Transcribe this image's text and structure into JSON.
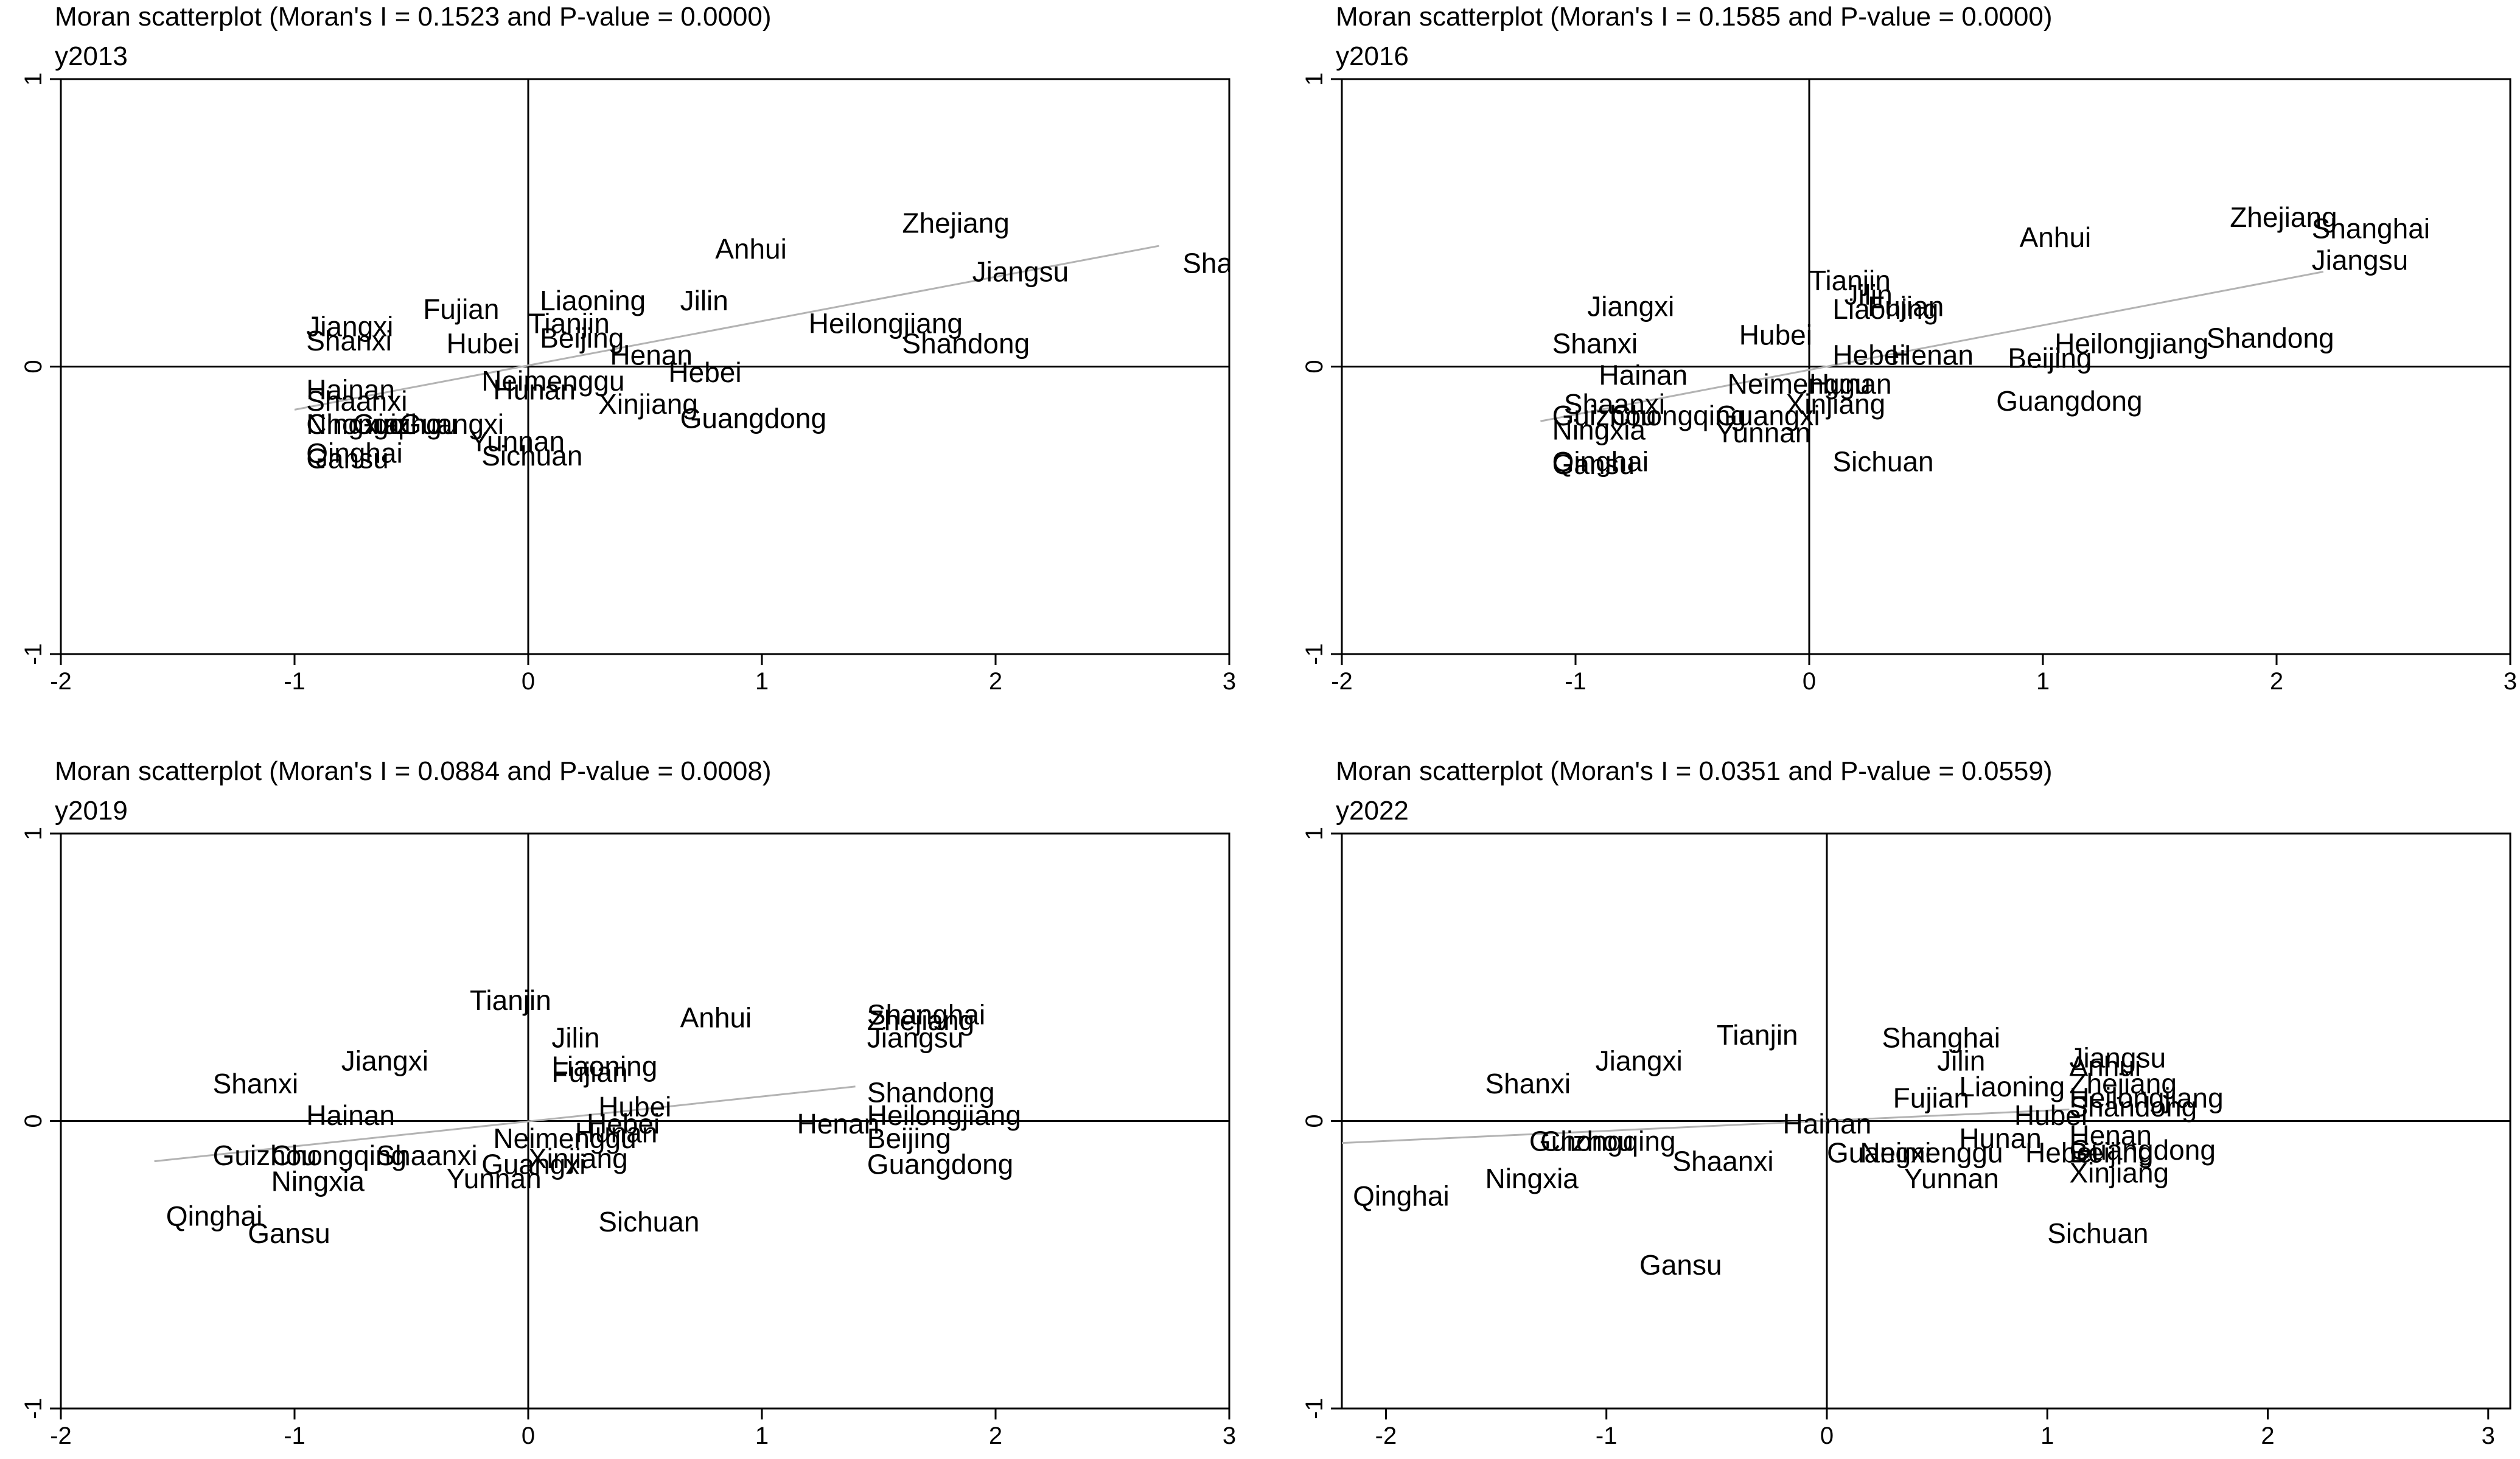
{
  "chart_data": [
    {
      "type": "scatter",
      "title": "Moran scatterplot (Moran's I = 0.1523 and P-value = 0.0000)",
      "subtitle": "y2013",
      "xlim": [
        -2,
        3
      ],
      "ylim": [
        -1,
        1
      ],
      "xticks": [
        "-2",
        "-1",
        "0",
        "1",
        "2",
        "3"
      ],
      "yticks": [
        "-1",
        "0",
        "1"
      ],
      "fit_line": {
        "x": [
          -1,
          2.7
        ],
        "y": [
          -0.15,
          0.42
        ]
      },
      "points": [
        {
          "label": "Zhejiang",
          "x": 1.6,
          "y": 0.5
        },
        {
          "label": "Shanghai",
          "x": 2.8,
          "y": 0.36
        },
        {
          "label": "Jiangsu",
          "x": 1.9,
          "y": 0.33
        },
        {
          "label": "Anhui",
          "x": 0.8,
          "y": 0.41
        },
        {
          "label": "Heilongjiang",
          "x": 1.2,
          "y": 0.15
        },
        {
          "label": "Shandong",
          "x": 1.6,
          "y": 0.08
        },
        {
          "label": "Jilin",
          "x": 0.65,
          "y": 0.23
        },
        {
          "label": "Liaoning",
          "x": 0.05,
          "y": 0.23
        },
        {
          "label": "Tianjin",
          "x": 0.0,
          "y": 0.15
        },
        {
          "label": "Beijing",
          "x": 0.05,
          "y": 0.1
        },
        {
          "label": "Henan",
          "x": 0.35,
          "y": 0.04
        },
        {
          "label": "Hebei",
          "x": 0.6,
          "y": -0.02
        },
        {
          "label": "Fujian",
          "x": -0.45,
          "y": 0.2
        },
        {
          "label": "Hubei",
          "x": -0.35,
          "y": 0.08
        },
        {
          "label": "Jiangxi",
          "x": -0.95,
          "y": 0.14
        },
        {
          "label": "Shanxi",
          "x": -0.95,
          "y": 0.09
        },
        {
          "label": "Neimenggu",
          "x": -0.2,
          "y": -0.05
        },
        {
          "label": "Hunan",
          "x": -0.15,
          "y": -0.08
        },
        {
          "label": "Xinjiang",
          "x": 0.3,
          "y": -0.13
        },
        {
          "label": "Guangdong",
          "x": 0.65,
          "y": -0.18
        },
        {
          "label": "Hainan",
          "x": -0.95,
          "y": -0.08
        },
        {
          "label": "Shaanxi",
          "x": -0.95,
          "y": -0.12
        },
        {
          "label": "Ningxia",
          "x": -0.95,
          "y": -0.2
        },
        {
          "label": "Chongqing",
          "x": -0.95,
          "y": -0.2
        },
        {
          "label": "Guizhou",
          "x": -0.75,
          "y": -0.2
        },
        {
          "label": "Guangxi",
          "x": -0.55,
          "y": -0.2
        },
        {
          "label": "Yunnan",
          "x": -0.25,
          "y": -0.26
        },
        {
          "label": "Sichuan",
          "x": -0.2,
          "y": -0.31
        },
        {
          "label": "Qinghai",
          "x": -0.95,
          "y": -0.3
        },
        {
          "label": "Gansu",
          "x": -0.95,
          "y": -0.32
        }
      ]
    },
    {
      "type": "scatter",
      "title": "Moran scatterplot (Moran's I = 0.1585 and P-value = 0.0000)",
      "subtitle": "y2016",
      "xlim": [
        -2,
        3
      ],
      "ylim": [
        -1,
        1
      ],
      "xticks": [
        "-2",
        "-1",
        "0",
        "1",
        "2",
        "3"
      ],
      "yticks": [
        "-1",
        "0",
        "1"
      ],
      "fit_line": {
        "x": [
          -1.15,
          2.2
        ],
        "y": [
          -0.19,
          0.33
        ]
      },
      "points": [
        {
          "label": "Zhejiang",
          "x": 1.8,
          "y": 0.52
        },
        {
          "label": "Shanghai",
          "x": 2.15,
          "y": 0.48
        },
        {
          "label": "Jiangsu",
          "x": 2.15,
          "y": 0.37
        },
        {
          "label": "Anhui",
          "x": 0.9,
          "y": 0.45
        },
        {
          "label": "Heilongjiang",
          "x": 1.05,
          "y": 0.08
        },
        {
          "label": "Shandong",
          "x": 1.7,
          "y": 0.1
        },
        {
          "label": "Tianjin",
          "x": 0.0,
          "y": 0.3
        },
        {
          "label": "Jilin",
          "x": 0.15,
          "y": 0.25
        },
        {
          "label": "Fujian",
          "x": 0.25,
          "y": 0.21
        },
        {
          "label": "Liaoning",
          "x": 0.1,
          "y": 0.2
        },
        {
          "label": "Jiangxi",
          "x": -0.95,
          "y": 0.21
        },
        {
          "label": "Hubei",
          "x": -0.3,
          "y": 0.11
        },
        {
          "label": "Shanxi",
          "x": -1.1,
          "y": 0.08
        },
        {
          "label": "Hebei",
          "x": 0.1,
          "y": 0.04
        },
        {
          "label": "Henan",
          "x": 0.35,
          "y": 0.04
        },
        {
          "label": "Beijing",
          "x": 0.85,
          "y": 0.03
        },
        {
          "label": "Hainan",
          "x": -0.9,
          "y": -0.03
        },
        {
          "label": "Neimenggu",
          "x": -0.35,
          "y": -0.06
        },
        {
          "label": "Hunan",
          "x": 0.0,
          "y": -0.06
        },
        {
          "label": "Xinjiang",
          "x": -0.1,
          "y": -0.13
        },
        {
          "label": "Guangdong",
          "x": 0.8,
          "y": -0.12
        },
        {
          "label": "Shaanxi",
          "x": -1.05,
          "y": -0.13
        },
        {
          "label": "Guizhou",
          "x": -1.1,
          "y": -0.17
        },
        {
          "label": "Chongqing",
          "x": -0.85,
          "y": -0.17
        },
        {
          "label": "Guangxi",
          "x": -0.4,
          "y": -0.17
        },
        {
          "label": "Ningxia",
          "x": -1.1,
          "y": -0.22
        },
        {
          "label": "Yunnan",
          "x": -0.4,
          "y": -0.23
        },
        {
          "label": "Sichuan",
          "x": 0.1,
          "y": -0.33
        },
        {
          "label": "Qinghai",
          "x": -1.1,
          "y": -0.33
        },
        {
          "label": "Gansu",
          "x": -1.1,
          "y": -0.34
        }
      ]
    },
    {
      "type": "scatter",
      "title": "Moran scatterplot (Moran's I = 0.0884 and P-value = 0.0008)",
      "subtitle": "y2019",
      "xlim": [
        -2,
        3
      ],
      "ylim": [
        -1,
        1
      ],
      "xticks": [
        "-2",
        "-1",
        "0",
        "1",
        "2",
        "3"
      ],
      "yticks": [
        "-1",
        "0",
        "1"
      ],
      "fit_line": {
        "x": [
          -1.6,
          1.4
        ],
        "y": [
          -0.14,
          0.12
        ]
      },
      "points": [
        {
          "label": "Shanghai",
          "x": 1.45,
          "y": 0.37
        },
        {
          "label": "Zhejiang",
          "x": 1.45,
          "y": 0.35
        },
        {
          "label": "Jiangsu",
          "x": 1.45,
          "y": 0.29
        },
        {
          "label": "Anhui",
          "x": 0.65,
          "y": 0.36
        },
        {
          "label": "Shandong",
          "x": 1.45,
          "y": 0.1
        },
        {
          "label": "Heilongjiang",
          "x": 1.45,
          "y": 0.02
        },
        {
          "label": "Henan",
          "x": 1.15,
          "y": -0.01
        },
        {
          "label": "Beijing",
          "x": 1.45,
          "y": -0.06
        },
        {
          "label": "Guangdong",
          "x": 1.45,
          "y": -0.15
        },
        {
          "label": "Tianjin",
          "x": -0.25,
          "y": 0.42
        },
        {
          "label": "Jilin",
          "x": 0.1,
          "y": 0.29
        },
        {
          "label": "Liaoning",
          "x": 0.1,
          "y": 0.19
        },
        {
          "label": "Fujian",
          "x": 0.1,
          "y": 0.17
        },
        {
          "label": "Jiangxi",
          "x": -0.8,
          "y": 0.21
        },
        {
          "label": "Shanxi",
          "x": -1.35,
          "y": 0.13
        },
        {
          "label": "Hainan",
          "x": -0.95,
          "y": 0.02
        },
        {
          "label": "Hubei",
          "x": 0.3,
          "y": 0.05
        },
        {
          "label": "Hebei",
          "x": 0.25,
          "y": -0.01
        },
        {
          "label": "Hunan",
          "x": 0.2,
          "y": -0.04
        },
        {
          "label": "Neimenggu",
          "x": -0.15,
          "y": -0.06
        },
        {
          "label": "Xinjiang",
          "x": 0.0,
          "y": -0.13
        },
        {
          "label": "Guangxi",
          "x": -0.2,
          "y": -0.15
        },
        {
          "label": "Yunnan",
          "x": -0.35,
          "y": -0.2
        },
        {
          "label": "Shaanxi",
          "x": -0.65,
          "y": -0.12
        },
        {
          "label": "Chongqing",
          "x": -1.1,
          "y": -0.12
        },
        {
          "label": "Guizhou",
          "x": -1.35,
          "y": -0.12
        },
        {
          "label": "Ningxia",
          "x": -1.1,
          "y": -0.21
        },
        {
          "label": "Sichuan",
          "x": 0.3,
          "y": -0.35
        },
        {
          "label": "Qinghai",
          "x": -1.55,
          "y": -0.33
        },
        {
          "label": "Gansu",
          "x": -1.2,
          "y": -0.39
        }
      ]
    },
    {
      "type": "scatter",
      "title": "Moran scatterplot (Moran's I = 0.0351 and P-value = 0.0559)",
      "subtitle": "y2022",
      "xlim": [
        -2.2,
        3.1
      ],
      "ylim": [
        -1,
        1
      ],
      "xticks": [
        "-2",
        "-1",
        "0",
        "1",
        "2",
        "3"
      ],
      "yticks": [
        "-1",
        "0",
        "1"
      ],
      "fit_line": {
        "x": [
          -2.3,
          1.1
        ],
        "y": [
          -0.08,
          0.04
        ]
      },
      "points": [
        {
          "label": "Tianjin",
          "x": -0.5,
          "y": 0.3
        },
        {
          "label": "Jiangxi",
          "x": -1.05,
          "y": 0.21
        },
        {
          "label": "Shanxi",
          "x": -1.55,
          "y": 0.13
        },
        {
          "label": "Shanghai",
          "x": 0.25,
          "y": 0.29
        },
        {
          "label": "Jilin",
          "x": 0.5,
          "y": 0.21
        },
        {
          "label": "Jiangsu",
          "x": 1.1,
          "y": 0.22
        },
        {
          "label": "Anhui",
          "x": 1.1,
          "y": 0.19
        },
        {
          "label": "Zhejiang",
          "x": 1.1,
          "y": 0.13
        },
        {
          "label": "Liaoning",
          "x": 0.6,
          "y": 0.12
        },
        {
          "label": "Heilongjiang",
          "x": 1.1,
          "y": 0.08
        },
        {
          "label": "Shandong",
          "x": 1.1,
          "y": 0.05
        },
        {
          "label": "Fujian",
          "x": 0.3,
          "y": 0.08
        },
        {
          "label": "Hubei",
          "x": 0.85,
          "y": 0.02
        },
        {
          "label": "Hainan",
          "x": -0.2,
          "y": -0.01
        },
        {
          "label": "Hunan",
          "x": 0.6,
          "y": -0.06
        },
        {
          "label": "Henan",
          "x": 1.1,
          "y": -0.05
        },
        {
          "label": "Guangdong",
          "x": 1.1,
          "y": -0.1
        },
        {
          "label": "Hebei",
          "x": 0.9,
          "y": -0.11
        },
        {
          "label": "Beijing",
          "x": 1.1,
          "y": -0.11
        },
        {
          "label": "Guangxi",
          "x": 0.0,
          "y": -0.11
        },
        {
          "label": "Neimenggu",
          "x": 0.15,
          "y": -0.11
        },
        {
          "label": "Xinjiang",
          "x": 1.1,
          "y": -0.18
        },
        {
          "label": "Yunnan",
          "x": 0.35,
          "y": -0.2
        },
        {
          "label": "Guizhou",
          "x": -1.35,
          "y": -0.07
        },
        {
          "label": "Chongqing",
          "x": -1.3,
          "y": -0.07
        },
        {
          "label": "Shaanxi",
          "x": -0.7,
          "y": -0.14
        },
        {
          "label": "Ningxia",
          "x": -1.55,
          "y": -0.2
        },
        {
          "label": "Qinghai",
          "x": -2.15,
          "y": -0.26
        },
        {
          "label": "Sichuan",
          "x": 1.0,
          "y": -0.39
        },
        {
          "label": "Gansu",
          "x": -0.85,
          "y": -0.5
        }
      ]
    }
  ]
}
